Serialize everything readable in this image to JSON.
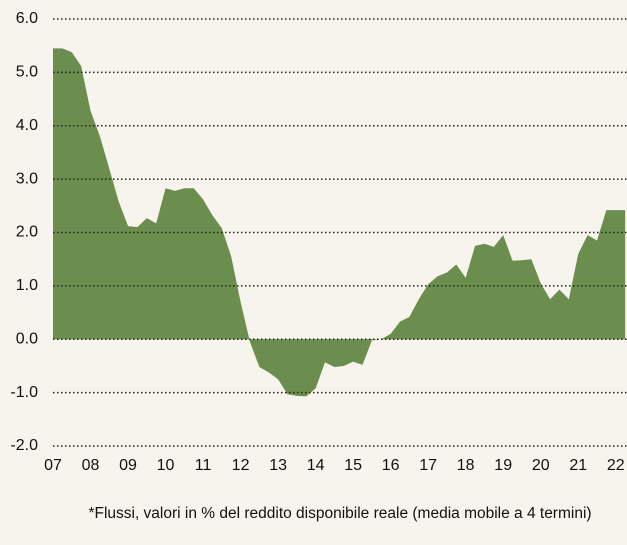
{
  "chart_data": {
    "type": "area",
    "note": "*Flussi, valori in % del reddito disponibile reale (media mobile a 4 termini)",
    "x": [
      7,
      7.25,
      7.5,
      7.75,
      8,
      8.25,
      8.5,
      8.75,
      9,
      9.25,
      9.5,
      9.75,
      10,
      10.25,
      10.5,
      10.75,
      11,
      11.25,
      11.5,
      11.75,
      12,
      12.25,
      12.5,
      12.75,
      13,
      13.25,
      13.5,
      13.75,
      14,
      14.25,
      14.5,
      14.75,
      15,
      15.25,
      15.5,
      15.75,
      16,
      16.25,
      16.5,
      16.75,
      17,
      17.25,
      17.5,
      17.75,
      18,
      18.25,
      18.5,
      18.75,
      19,
      19.25,
      19.5,
      19.75,
      20,
      20.25,
      20.5,
      20.75,
      21,
      21.25,
      21.5,
      21.75,
      22,
      22.25
    ],
    "values": [
      5.45,
      5.45,
      5.38,
      5.12,
      4.28,
      3.8,
      3.2,
      2.58,
      2.12,
      2.1,
      2.27,
      2.17,
      2.83,
      2.78,
      2.83,
      2.83,
      2.62,
      2.32,
      2.08,
      1.55,
      0.7,
      -0.05,
      -0.52,
      -0.62,
      -0.75,
      -1.03,
      -1.06,
      -1.07,
      -0.92,
      -0.43,
      -0.52,
      -0.5,
      -0.42,
      -0.48,
      -0.02,
      0.0,
      0.1,
      0.33,
      0.42,
      0.75,
      1.03,
      1.18,
      1.25,
      1.4,
      1.15,
      1.75,
      1.79,
      1.73,
      1.95,
      1.47,
      1.48,
      1.5,
      1.05,
      0.75,
      0.93,
      0.75,
      1.6,
      1.95,
      1.85,
      2.42,
      2.42,
      2.42
    ],
    "color": "#6b8e4e",
    "xlim": [
      7,
      22.3
    ],
    "xticks": [
      {
        "value": 7,
        "label": "07"
      },
      {
        "value": 8,
        "label": "08"
      },
      {
        "value": 9,
        "label": "09"
      },
      10,
      11,
      12,
      13,
      14,
      15,
      16,
      17,
      18,
      19,
      20,
      21,
      22
    ],
    "ylim": [
      -2,
      6
    ],
    "yticks": [
      {
        "value": -2,
        "label": "-2.0"
      },
      {
        "value": -1,
        "label": "-1.0"
      },
      {
        "value": 0,
        "label": "0.0"
      },
      {
        "value": 1,
        "label": "1.0"
      },
      {
        "value": 2,
        "label": "2.0"
      },
      {
        "value": 3,
        "label": "3.0"
      },
      {
        "value": 4,
        "label": "4.0"
      },
      {
        "value": 5,
        "label": "5.0"
      },
      {
        "value": 6,
        "label": "6.0"
      }
    ],
    "grid": true
  }
}
